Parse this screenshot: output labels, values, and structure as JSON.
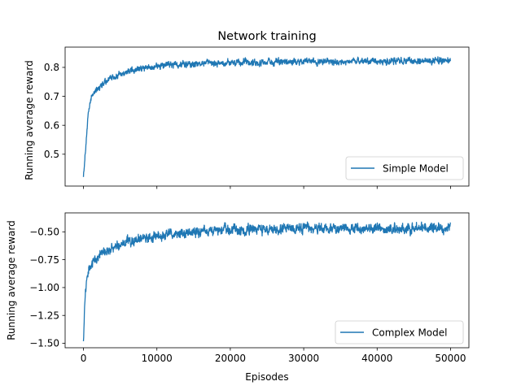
{
  "chart_data": [
    {
      "type": "line",
      "title": "Network training",
      "xlabel": "",
      "ylabel": "Running average reward",
      "xlim": [
        -2500,
        52500
      ],
      "ylim": [
        0.39,
        0.87
      ],
      "xticks": [
        0,
        10000,
        20000,
        30000,
        40000,
        50000
      ],
      "yticks": [
        0.5,
        0.6,
        0.7,
        0.8
      ],
      "ytick_labels": [
        "0.5",
        "0.6",
        "0.7",
        "0.8"
      ],
      "legend": "lower-right",
      "color": "#1f77b4",
      "series": [
        {
          "name": "Simple Model",
          "x": [
            0,
            200,
            400,
            600,
            800,
            1000,
            1200,
            1500,
            2000,
            2500,
            3000,
            3500,
            4000,
            5000,
            6000,
            7000,
            8000,
            9000,
            10000,
            12000,
            14000,
            16000,
            18000,
            20000,
            22000,
            24000,
            26000,
            28000,
            30000,
            32000,
            34000,
            36000,
            38000,
            40000,
            42000,
            44000,
            46000,
            48000,
            50000
          ],
          "y": [
            0.43,
            0.49,
            0.56,
            0.62,
            0.66,
            0.69,
            0.7,
            0.72,
            0.73,
            0.74,
            0.75,
            0.76,
            0.765,
            0.775,
            0.785,
            0.79,
            0.795,
            0.8,
            0.805,
            0.81,
            0.812,
            0.813,
            0.814,
            0.815,
            0.816,
            0.817,
            0.818,
            0.819,
            0.82,
            0.82,
            0.819,
            0.82,
            0.82,
            0.82,
            0.821,
            0.822,
            0.822,
            0.823,
            0.825
          ]
        }
      ]
    },
    {
      "type": "line",
      "title": "",
      "xlabel": "Episodes",
      "ylabel": "Running average reward",
      "xlim": [
        -2500,
        52500
      ],
      "ylim": [
        -1.54,
        -0.33
      ],
      "xticks": [
        0,
        10000,
        20000,
        30000,
        40000,
        50000
      ],
      "xtick_labels": [
        "0",
        "10000",
        "20000",
        "30000",
        "40000",
        "50000"
      ],
      "yticks": [
        -1.5,
        -1.25,
        -1.0,
        -0.75,
        -0.5
      ],
      "ytick_labels": [
        "−1.50",
        "−1.25",
        "−1.00",
        "−0.75",
        "−0.50"
      ],
      "legend": "lower-right",
      "color": "#1f77b4",
      "series": [
        {
          "name": "Complex Model",
          "x": [
            0,
            100,
            200,
            400,
            600,
            800,
            1000,
            1500,
            2000,
            2500,
            3000,
            4000,
            5000,
            6000,
            7000,
            8000,
            9000,
            10000,
            12000,
            14000,
            16000,
            18000,
            20000,
            22000,
            24000,
            26000,
            28000,
            30000,
            32000,
            34000,
            36000,
            38000,
            40000,
            42000,
            44000,
            46000,
            48000,
            50000
          ],
          "y": [
            -1.47,
            -1.3,
            -1.1,
            -0.95,
            -0.88,
            -0.84,
            -0.8,
            -0.75,
            -0.72,
            -0.7,
            -0.67,
            -0.64,
            -0.61,
            -0.59,
            -0.57,
            -0.56,
            -0.55,
            -0.54,
            -0.52,
            -0.51,
            -0.5,
            -0.495,
            -0.49,
            -0.485,
            -0.48,
            -0.48,
            -0.475,
            -0.47,
            -0.47,
            -0.47,
            -0.47,
            -0.47,
            -0.47,
            -0.47,
            -0.47,
            -0.468,
            -0.466,
            -0.465
          ]
        }
      ]
    }
  ]
}
